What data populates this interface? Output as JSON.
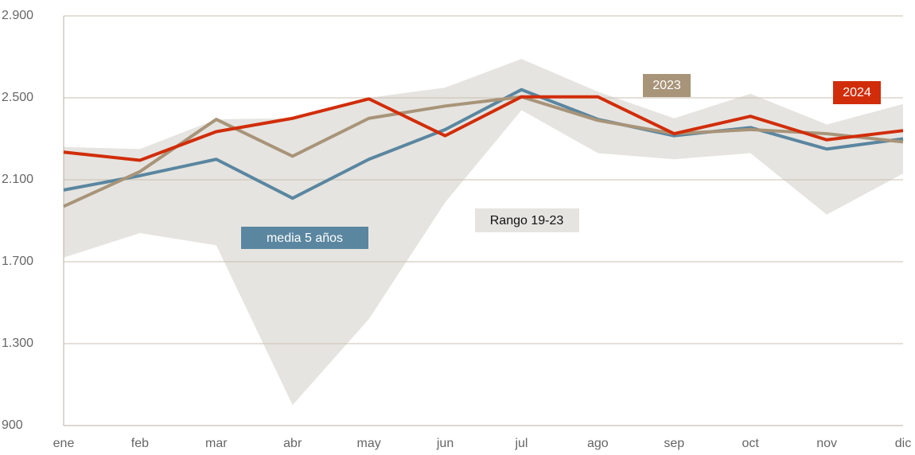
{
  "chart_data": {
    "type": "line",
    "categories": [
      "ene",
      "feb",
      "mar",
      "abr",
      "may",
      "jun",
      "jul",
      "ago",
      "sep",
      "oct",
      "nov",
      "dic"
    ],
    "ylim": [
      900,
      2900
    ],
    "yticks": [
      {
        "value": 900,
        "label": "900"
      },
      {
        "value": 1300,
        "label": "1.300"
      },
      {
        "value": 1700,
        "label": "1.700"
      },
      {
        "value": 2100,
        "label": "2.100"
      },
      {
        "value": 2500,
        "label": "2.500"
      },
      {
        "value": 2900,
        "label": "2.900"
      }
    ],
    "grid": true,
    "band": {
      "name": "Rango 19-23",
      "color": "#e6e4e0",
      "upper": [
        2260,
        2250,
        2395,
        2400,
        2500,
        2550,
        2690,
        2530,
        2400,
        2520,
        2370,
        2470
      ],
      "lower": [
        1720,
        1840,
        1780,
        1000,
        1420,
        1990,
        2440,
        2230,
        2200,
        2230,
        1930,
        2130
      ]
    },
    "series": [
      {
        "name": "media 5 años",
        "color": "#5a86a0",
        "values": [
          2050,
          2120,
          2200,
          2010,
          2200,
          2345,
          2540,
          2395,
          2315,
          2355,
          2250,
          2300
        ]
      },
      {
        "name": "2023",
        "color": "#a89479",
        "values": [
          1970,
          2140,
          2395,
          2215,
          2400,
          2460,
          2505,
          2390,
          2325,
          2345,
          2325,
          2285
        ]
      },
      {
        "name": "2024",
        "color": "#d12d0a",
        "values": [
          2235,
          2195,
          2335,
          2400,
          2495,
          2315,
          2505,
          2505,
          2325,
          2410,
          2295,
          2340
        ]
      }
    ]
  }
}
